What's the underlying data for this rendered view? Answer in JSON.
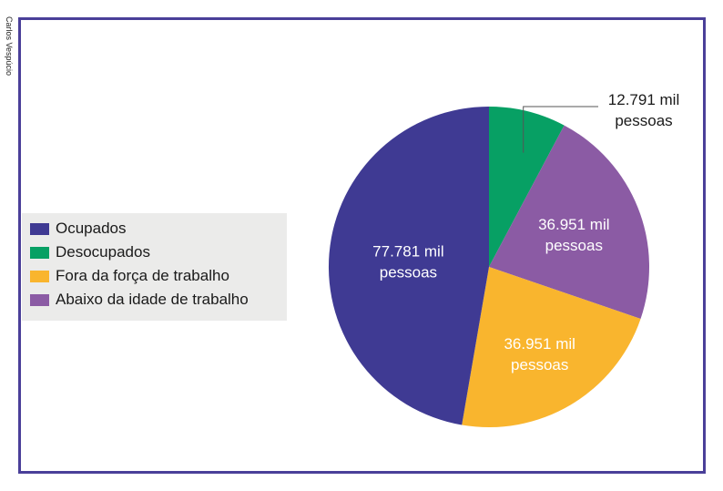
{
  "credit": "Carlos Vespúcio",
  "chart_data": {
    "type": "pie",
    "slices": [
      {
        "name": "Ocupados",
        "value": 77781,
        "color": "#3f3a93",
        "label_lines": [
          "77.781 mil",
          "pessoas"
        ],
        "label_color": "#ffffff"
      },
      {
        "name": "Desocupados",
        "value": 12791,
        "color": "#07a064",
        "label_lines": [
          "12.791 mil",
          "pessoas"
        ],
        "label_color": "#1a1a1a"
      },
      {
        "name": "Fora da força de trabalho",
        "value": 36951,
        "color": "#f9b52e",
        "label_lines": [
          "36.951 mil",
          "pessoas"
        ],
        "label_color": "#ffffff"
      },
      {
        "name": "Abaixo da idade de trabalho",
        "value": 36951,
        "color": "#8b5ba4",
        "label_lines": [
          "36.951 mil",
          "pessoas"
        ],
        "label_color": "#ffffff"
      }
    ],
    "draw_order_clockwise_from_top": [
      "Desocupados",
      "Abaixo da idade de trabalho",
      "Fora da força de trabalho",
      "Ocupados"
    ],
    "legend": {
      "placement": "left",
      "items": [
        "Ocupados",
        "Desocupados",
        "Fora da força de trabalho",
        "Abaixo da idade de trabalho"
      ]
    }
  }
}
